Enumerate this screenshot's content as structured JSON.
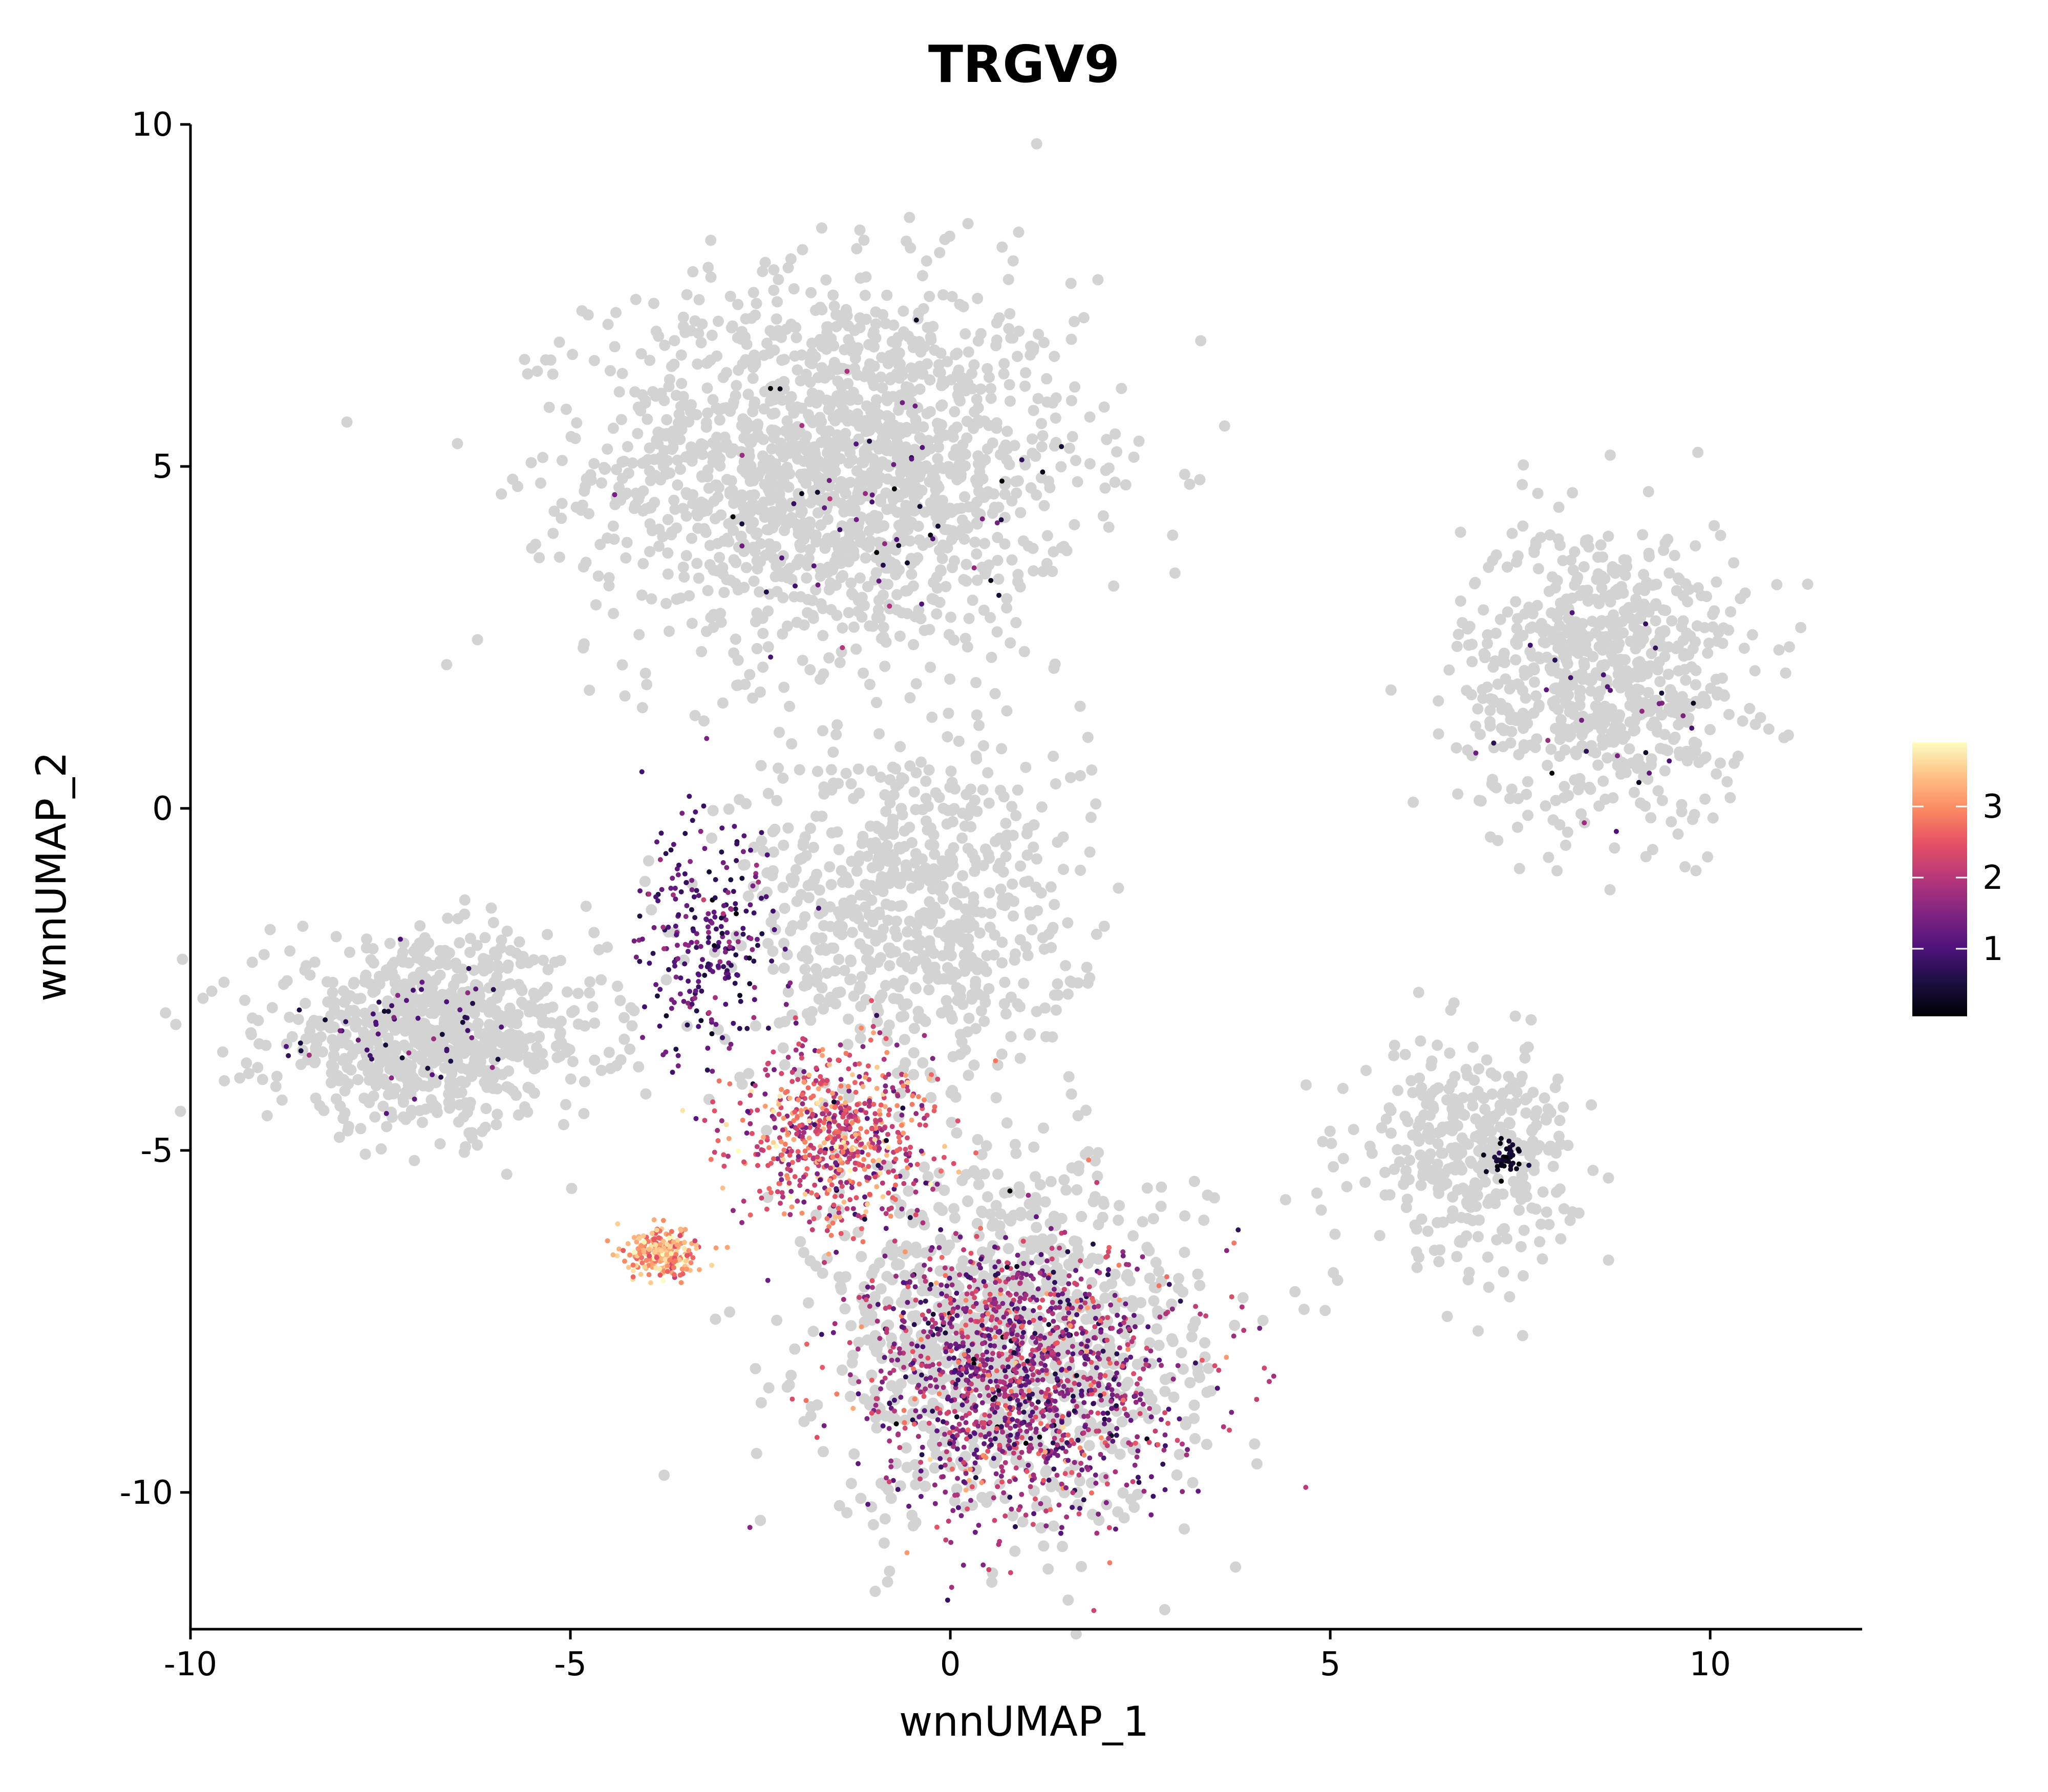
{
  "chart_data": {
    "type": "scatter",
    "title": "TRGV9",
    "xlabel": "wnnUMAP_1",
    "ylabel": "wnnUMAP_2",
    "xlim": [
      -10,
      12
    ],
    "ylim": [
      -12,
      10
    ],
    "xticks": [
      -10,
      -5,
      0,
      5,
      10
    ],
    "yticks": [
      -10,
      -5,
      0,
      5,
      10
    ],
    "grid": false,
    "background_color": "#D3D3D3",
    "colormap": "magma",
    "colorbar": {
      "min": 0.05,
      "max": 3.9,
      "ticks": [
        1,
        2,
        3
      ],
      "placement": "right"
    },
    "background_clusters": [
      {
        "name": "top",
        "center": [
          -1.5,
          5.0
        ],
        "spread": [
          2.9,
          2.5
        ],
        "count": 1600
      },
      {
        "name": "right",
        "center": [
          8.6,
          2.0
        ],
        "spread": [
          1.7,
          2.0
        ],
        "count": 700
      },
      {
        "name": "left",
        "center": [
          -6.8,
          -3.3
        ],
        "spread": [
          2.0,
          1.2
        ],
        "count": 800
      },
      {
        "name": "lower-right",
        "center": [
          6.8,
          -5.0
        ],
        "spread": [
          1.3,
          1.4
        ],
        "count": 350
      },
      {
        "name": "bottom",
        "center": [
          0.8,
          -7.8
        ],
        "spread": [
          2.3,
          2.4
        ],
        "count": 900
      },
      {
        "name": "mid",
        "center": [
          -0.5,
          -1.5
        ],
        "spread": [
          2.0,
          2.5
        ],
        "count": 700
      }
    ],
    "expression_clusters": [
      {
        "name": "bottom-blob",
        "center": [
          0.9,
          -8.3
        ],
        "spread": [
          2.0,
          2.0
        ],
        "count": 1400,
        "value_mean": 1.7,
        "value_sd": 0.6
      },
      {
        "name": "mid-streak",
        "center": [
          -1.5,
          -4.8
        ],
        "spread": [
          1.3,
          1.3
        ],
        "count": 700,
        "value_mean": 2.4,
        "value_sd": 0.7
      },
      {
        "name": "small-blob",
        "center": [
          -3.8,
          -6.5
        ],
        "spread": [
          0.45,
          0.35
        ],
        "count": 260,
        "value_mean": 3.2,
        "value_sd": 0.4
      },
      {
        "name": "left-scatter",
        "center": [
          -3.2,
          -1.8
        ],
        "spread": [
          0.9,
          1.8
        ],
        "count": 260,
        "value_mean": 1.1,
        "value_sd": 0.4
      },
      {
        "name": "left-cluster",
        "center": [
          -7.2,
          -3.2
        ],
        "spread": [
          1.5,
          0.9
        ],
        "count": 60,
        "value_mean": 0.9,
        "value_sd": 0.4
      },
      {
        "name": "right-cluster",
        "center": [
          8.6,
          1.0
        ],
        "spread": [
          1.4,
          1.6
        ],
        "count": 30,
        "value_mean": 1.0,
        "value_sd": 0.4
      },
      {
        "name": "lower-right-cluster",
        "center": [
          7.3,
          -5.1
        ],
        "spread": [
          0.25,
          0.25
        ],
        "count": 40,
        "value_mean": 0.3,
        "value_sd": 0.2
      },
      {
        "name": "top-cluster",
        "center": [
          -1.2,
          4.5
        ],
        "spread": [
          2.3,
          2.0
        ],
        "count": 60,
        "value_mean": 1.0,
        "value_sd": 0.6
      }
    ]
  }
}
